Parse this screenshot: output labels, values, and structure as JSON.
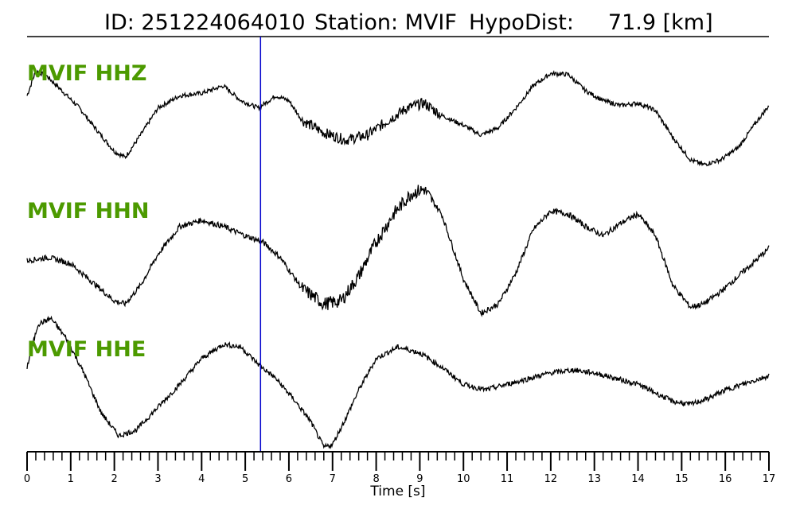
{
  "header": {
    "id_text": "ID: 251224064010",
    "station_text": "Station: MVIF",
    "hypodist_text": "HypoDist:     71.9 [km]"
  },
  "colors": {
    "trace": "#000000",
    "channel_label": "#4c9a00",
    "pick_line": "#0000cc",
    "axis": "#000000"
  },
  "chart_data": {
    "type": "line",
    "title": "ID: 251224064010   Station: MVIF   HypoDist:     71.9 [km]",
    "xlabel": "Time [s]",
    "ylabel": "",
    "xlim": [
      0,
      17
    ],
    "ylim": [
      -1,
      1
    ],
    "x_ticks": [
      0,
      1,
      2,
      3,
      4,
      5,
      6,
      7,
      8,
      9,
      10,
      11,
      12,
      13,
      14,
      15,
      16,
      17
    ],
    "x_minor_step": 0.2,
    "pick_time": 5.35,
    "grid": false,
    "series": [
      {
        "name": "MVIF HHZ",
        "x": [
          0,
          0.2,
          0.45,
          0.8,
          1.2,
          1.6,
          2.0,
          2.25,
          2.6,
          3.0,
          3.5,
          4.0,
          4.5,
          4.9,
          5.3,
          5.7,
          6.0,
          6.3,
          6.8,
          7.3,
          7.8,
          8.2,
          8.7,
          9.1,
          9.5,
          10.0,
          10.4,
          10.8,
          11.2,
          11.6,
          12.0,
          12.4,
          12.8,
          13.2,
          13.6,
          14.0,
          14.4,
          14.8,
          15.2,
          15.5,
          15.9,
          16.3,
          16.7,
          17.0
        ],
        "y": [
          0.35,
          0.85,
          0.75,
          0.45,
          0.1,
          -0.35,
          -0.78,
          -0.9,
          -0.45,
          0.1,
          0.35,
          0.4,
          0.55,
          0.25,
          0.1,
          0.35,
          0.25,
          -0.15,
          -0.4,
          -0.55,
          -0.45,
          -0.2,
          0.1,
          0.2,
          -0.05,
          -0.25,
          -0.45,
          -0.3,
          0.1,
          0.55,
          0.8,
          0.78,
          0.45,
          0.25,
          0.15,
          0.2,
          0.05,
          -0.5,
          -0.95,
          -1.05,
          -0.95,
          -0.7,
          -0.2,
          0.15
        ]
      },
      {
        "name": "MVIF HHN",
        "x": [
          0,
          0.5,
          1.0,
          1.5,
          2.0,
          2.25,
          2.6,
          3.0,
          3.5,
          4.0,
          4.5,
          5.0,
          5.4,
          5.8,
          6.3,
          6.8,
          7.2,
          7.6,
          8.0,
          8.4,
          8.8,
          9.1,
          9.5,
          10.0,
          10.4,
          10.8,
          11.2,
          11.6,
          12.0,
          12.4,
          12.8,
          13.2,
          13.6,
          14.0,
          14.4,
          14.8,
          15.2,
          15.5,
          15.9,
          16.3,
          16.7,
          17.0
        ],
        "y": [
          -0.2,
          -0.15,
          -0.25,
          -0.55,
          -0.85,
          -0.9,
          -0.6,
          -0.1,
          0.35,
          0.45,
          0.35,
          0.2,
          0.1,
          -0.15,
          -0.65,
          -0.9,
          -0.85,
          -0.45,
          0.1,
          0.55,
          0.88,
          0.95,
          0.55,
          -0.5,
          -1.05,
          -0.9,
          -0.4,
          0.3,
          0.6,
          0.55,
          0.35,
          0.2,
          0.4,
          0.55,
          0.2,
          -0.6,
          -0.95,
          -0.9,
          -0.7,
          -0.45,
          -0.2,
          0.0
        ]
      },
      {
        "name": "MVIF HHE",
        "x": [
          0,
          0.25,
          0.55,
          0.9,
          1.3,
          1.7,
          2.1,
          2.5,
          3.0,
          3.5,
          4.0,
          4.5,
          4.9,
          5.3,
          5.7,
          6.1,
          6.5,
          6.8,
          7.0,
          7.3,
          7.6,
          8.0,
          8.5,
          9.0,
          9.5,
          10.0,
          10.5,
          11.0,
          11.5,
          12.0,
          12.5,
          13.0,
          13.5,
          14.0,
          14.4,
          14.8,
          15.2,
          15.6,
          16.0,
          16.4,
          16.8,
          17.0
        ],
        "y": [
          0.2,
          0.95,
          1.05,
          0.7,
          0.1,
          -0.6,
          -1.0,
          -0.9,
          -0.5,
          -0.1,
          0.35,
          0.6,
          0.55,
          0.25,
          0.0,
          -0.35,
          -0.75,
          -1.2,
          -1.15,
          -0.7,
          -0.2,
          0.35,
          0.55,
          0.45,
          0.2,
          -0.1,
          -0.2,
          -0.1,
          0.0,
          0.1,
          0.15,
          0.1,
          0.0,
          -0.1,
          -0.25,
          -0.4,
          -0.45,
          -0.35,
          -0.2,
          -0.1,
          0.0,
          0.05
        ]
      }
    ]
  }
}
